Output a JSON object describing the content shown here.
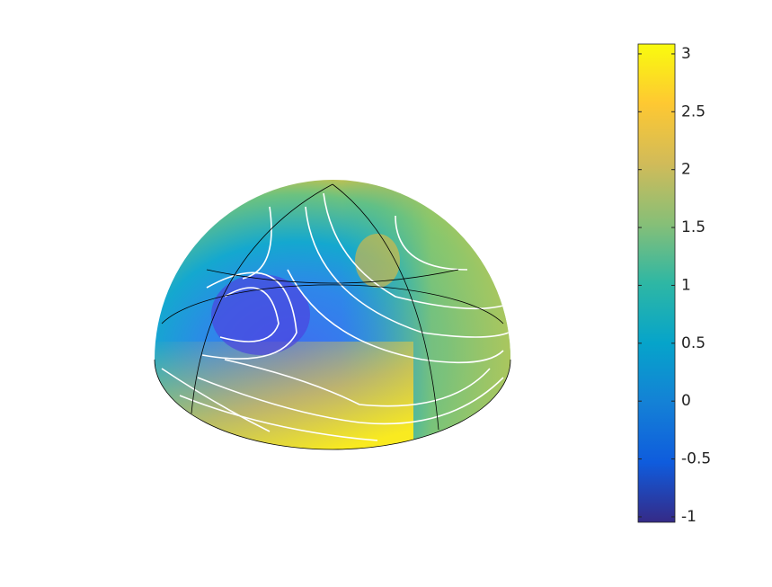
{
  "chart_data": {
    "type": "surface",
    "clim": [
      -1.047,
      3.085
    ],
    "cticks": [
      -1,
      -0.5,
      0,
      0.5,
      1,
      1.5,
      2,
      2.5,
      3
    ],
    "colormap": [
      "#352a87",
      "#0f5cdd",
      "#1481d6",
      "#06a4ca",
      "#2eb7a4",
      "#87bf77",
      "#d1bb59",
      "#fec832",
      "#f9fb0e"
    ]
  }
}
